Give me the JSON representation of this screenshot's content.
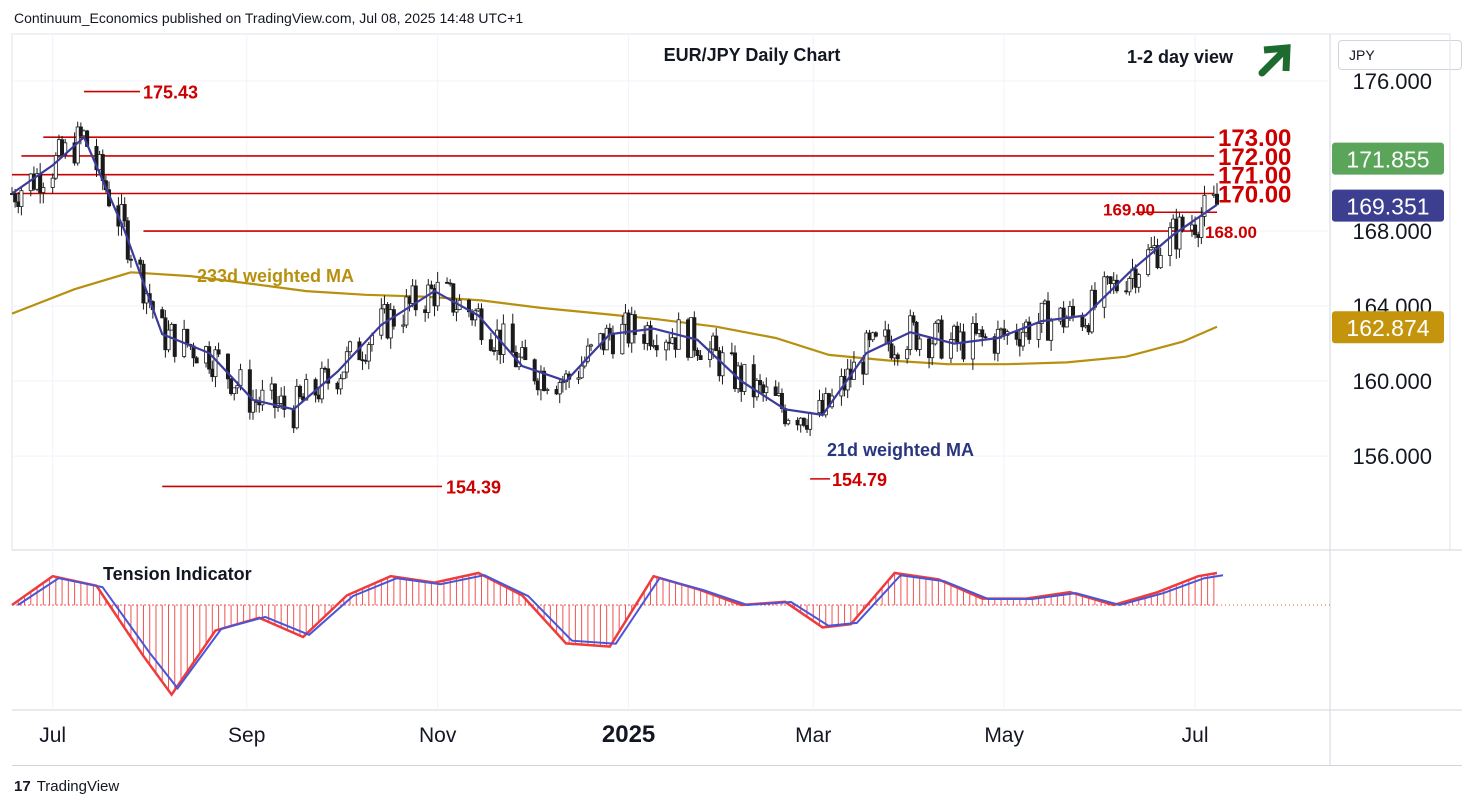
{
  "header": {
    "publisher_line": "Continuum_Economics published on TradingView.com, Jul 08, 2025 14:48 UTC+1"
  },
  "currency_box": "JPY",
  "footer": {
    "logo_text": "TradingView"
  },
  "colors": {
    "up_candle": "#2e7d6b",
    "down_candle": "#ef5350",
    "candle": "#1b1b1b",
    "level_line": "#cc0000",
    "ma21": "#3b3b9c",
    "ma233": "#b8900f",
    "arrow": "#1e6b2f",
    "tension_line_red": "#ef3b3b",
    "tension_line_blue": "#4a55d8"
  },
  "chart_data": [
    {
      "type": "line",
      "title": "EUR/JPY Daily Chart",
      "subtitle": "1-2 day view",
      "outlook_icon": "arrow-up-right-icon",
      "y_axis": {
        "ticks": [
          "176.000",
          "168.000",
          "164.000",
          "160.000",
          "156.000"
        ],
        "ylim": [
          151.0,
          178.5
        ]
      },
      "x_axis": {
        "ticks": [
          "Jul",
          "Sep",
          "Nov",
          "2025",
          "Jan",
          "Mar",
          "May",
          "Jul"
        ],
        "tick_labels_shown": [
          "Jul",
          "Sep",
          "Nov",
          "2025",
          "Mar",
          "May",
          "Jul"
        ]
      },
      "price_badges": [
        {
          "value": 171.855,
          "label": "171.855",
          "color": "#5aa55a"
        },
        {
          "value": 169.351,
          "label": "169.351",
          "color": "#3c3f8f"
        },
        {
          "value": 162.874,
          "label": "162.874",
          "color": "#c4940c"
        }
      ],
      "levels": [
        {
          "value": 173.0,
          "label": "173.00"
        },
        {
          "value": 172.0,
          "label": "172.00"
        },
        {
          "value": 171.0,
          "label": "171.00"
        },
        {
          "value": 170.0,
          "label": "170.00"
        },
        {
          "value": 169.0,
          "label": "169.00"
        },
        {
          "value": 168.0,
          "label": "168.00"
        }
      ],
      "annotations": [
        {
          "label": "175.43",
          "value": 175.43
        },
        {
          "label": "154.39",
          "value": 154.39
        },
        {
          "label": "154.79",
          "value": 154.79
        }
      ],
      "series": [
        {
          "name": "233d weighted MA",
          "x": [
            "2024-06-18",
            "2024-07-08",
            "2024-07-26",
            "2024-08-14",
            "2024-09-02",
            "2024-09-20",
            "2024-10-09",
            "2024-10-28",
            "2024-11-15",
            "2024-12-04",
            "2024-12-23",
            "2025-01-10",
            "2025-01-29",
            "2025-02-17",
            "2025-03-06",
            "2025-03-25",
            "2025-04-13",
            "2025-05-02",
            "2025-05-21",
            "2025-06-09",
            "2025-06-27",
            "2025-07-08"
          ],
          "values": [
            163.6,
            164.9,
            165.8,
            165.6,
            165.2,
            164.8,
            164.6,
            164.5,
            164.3,
            163.9,
            163.6,
            163.3,
            162.9,
            162.3,
            161.4,
            161.1,
            160.9,
            160.9,
            161.0,
            161.3,
            162.1,
            162.9
          ]
        },
        {
          "name": "21d weighted MA",
          "x": [
            "2024-06-18",
            "2024-07-01",
            "2024-07-11",
            "2024-07-24",
            "2024-08-05",
            "2024-08-20",
            "2024-09-03",
            "2024-09-16",
            "2024-09-30",
            "2024-10-14",
            "2024-10-31",
            "2024-11-14",
            "2024-11-28",
            "2024-12-12",
            "2024-12-26",
            "2025-01-09",
            "2025-01-23",
            "2025-02-06",
            "2025-02-20",
            "2025-03-04",
            "2025-03-18",
            "2025-04-01",
            "2025-04-15",
            "2025-04-29",
            "2025-05-13",
            "2025-05-27",
            "2025-06-10",
            "2025-06-24",
            "2025-07-08"
          ],
          "values": [
            170.0,
            171.5,
            173.0,
            168.0,
            162.5,
            161.5,
            159.0,
            158.5,
            160.5,
            163.0,
            164.8,
            163.5,
            160.8,
            160.0,
            162.5,
            162.8,
            162.2,
            160.0,
            158.5,
            158.2,
            161.5,
            162.6,
            162.0,
            162.3,
            163.2,
            163.5,
            165.8,
            167.8,
            169.4
          ]
        }
      ]
    },
    {
      "type": "area",
      "title": "Tension Indicator",
      "series": [
        {
          "name": "",
          "x": [
            "2024-06-18",
            "2024-07-01",
            "2024-07-15",
            "2024-07-30",
            "2024-08-08",
            "2024-08-22",
            "2024-09-05",
            "2024-09-19",
            "2024-10-03",
            "2024-10-17",
            "2024-10-31",
            "2024-11-14",
            "2024-11-28",
            "2024-12-12",
            "2024-12-26",
            "2025-01-09",
            "2025-01-23",
            "2025-02-06",
            "2025-02-20",
            "2025-03-04",
            "2025-03-13",
            "2025-03-27",
            "2025-04-10",
            "2025-04-24",
            "2025-05-08",
            "2025-05-22",
            "2025-06-05",
            "2025-06-19",
            "2025-07-02",
            "2025-07-08"
          ],
          "values": [
            0.0,
            0.9,
            0.6,
            -1.6,
            -2.8,
            -0.8,
            -0.4,
            -1.0,
            0.3,
            0.9,
            0.7,
            1.0,
            0.3,
            -1.2,
            -1.3,
            0.9,
            0.5,
            0.0,
            0.1,
            -0.7,
            -0.6,
            1.0,
            0.8,
            0.2,
            0.2,
            0.4,
            0.0,
            0.4,
            0.9,
            1.0
          ]
        }
      ]
    }
  ]
}
